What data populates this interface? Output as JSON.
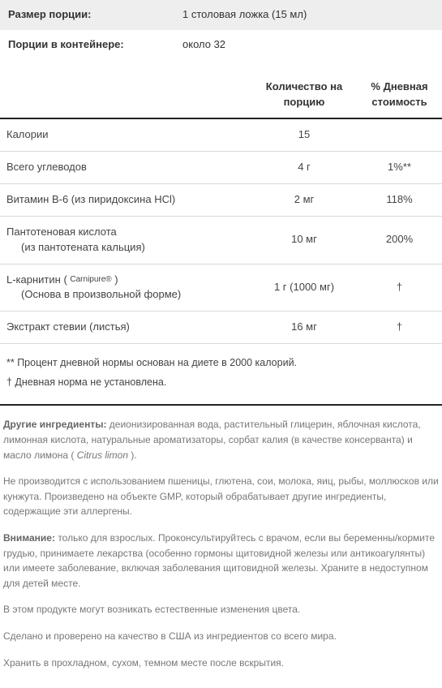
{
  "info_rows": [
    {
      "label": "Размер порции:",
      "value": "1 столовая ложка (15 мл)"
    },
    {
      "label": "Порции в контейнере:",
      "value": "около 32"
    }
  ],
  "headers": {
    "name": "",
    "amount": "Количество на порцию",
    "dv": "% Дневная стоимость"
  },
  "nutrients": [
    {
      "name": "Калории",
      "sub": "",
      "amount": "15",
      "dv": ""
    },
    {
      "name": "Всего углеводов",
      "sub": "",
      "amount": "4 г",
      "dv": "1%**"
    },
    {
      "name": "Витамин B-6 (из пиридоксина HCl)",
      "sub": "",
      "amount": "2 мг",
      "dv": "118%"
    },
    {
      "name": "Пантотеновая кислота",
      "sub": "(из пантотената кальция)",
      "amount": "10 мг",
      "dv": "200%"
    },
    {
      "name": "L-карнитин ( <span class=\"sup\">Carnipure®</span> )",
      "sub": "(Основа в произвольной форме)",
      "amount": "1 г (1000 мг)",
      "dv": "†"
    },
    {
      "name": "Экстракт стевии (листья)",
      "sub": "",
      "amount": "16 мг",
      "dv": "†"
    }
  ],
  "footnotes": [
    "** Процент дневной нормы основан на диете в 2000 калорий.",
    "† Дневная норма не установлена."
  ],
  "paragraphs": [
    {
      "lead": "Другие ингредиенты:",
      "text": " деионизированная вода, растительный глицерин, яблочная кислота, лимонная кислота, натуральные ароматизаторы, сорбат калия (в качестве консерванта) и масло лимона ( <i>Citrus limon</i> )."
    },
    {
      "lead": "",
      "text": "Не производится с использованием пшеницы, глютена, сои, молока, яиц, рыбы, моллюсков или кунжута. Произведено на объекте GMP, который обрабатывает другие ингредиенты, содержащие эти аллергены."
    },
    {
      "lead": "Внимание:",
      "text": " только для взрослых. Проконсультируйтесь с врачом, если вы беременны/кормите грудью, принимаете лекарства (особенно гормоны щитовидной железы или антикоагулянты) или имеете заболевание, включая заболевания щитовидной железы. Храните в недоступном для детей месте."
    },
    {
      "lead": "",
      "text": "В этом продукте могут возникать естественные изменения цвета."
    },
    {
      "lead": "",
      "text": "Сделано и проверено на качество в США из ингредиентов со всего мира."
    },
    {
      "lead": "",
      "text": "Хранить в прохладном, сухом, темном месте после вскрытия."
    }
  ]
}
